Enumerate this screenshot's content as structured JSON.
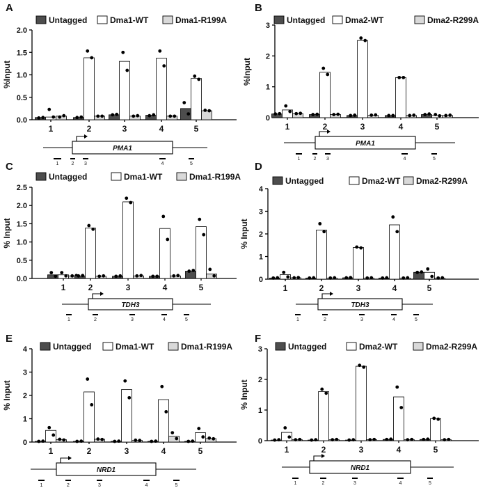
{
  "chart_data": [
    {
      "panel": "A",
      "type": "bar",
      "gene": "PMA1",
      "ylabel": "%Input",
      "ylim": [
        0,
        2.0
      ],
      "yticks": [
        "0.0",
        "0.5",
        "1.0",
        "1.5",
        "2.0"
      ],
      "categories": [
        "1",
        "2",
        "3",
        "4",
        "5"
      ],
      "series": [
        {
          "name": "Untagged",
          "color": "#4d4d4d",
          "values": [
            0.05,
            0.05,
            0.11,
            0.1,
            0.25
          ],
          "points": [
            [
              0.04,
              0.05
            ],
            [
              0.05,
              0.06
            ],
            [
              0.11,
              0.12
            ],
            [
              0.09,
              0.11
            ],
            [
              0.38,
              0.13
            ]
          ]
        },
        {
          "name": "Dma1-WT",
          "color": "#ffffff",
          "values": [
            0.06,
            1.38,
            1.3,
            1.37,
            0.92
          ],
          "points": [
            [
              0.23,
              0.06
            ],
            [
              1.53,
              1.38
            ],
            [
              1.5,
              1.1
            ],
            [
              1.53,
              1.2
            ],
            [
              0.97,
              0.9
            ]
          ]
        },
        {
          "name": "Dma1-R199A",
          "color": "#d9d9d9",
          "values": [
            0.08,
            0.08,
            0.08,
            0.08,
            0.2
          ],
          "points": [
            [
              0.06,
              0.09
            ],
            [
              0.08,
              0.08
            ],
            [
              0.08,
              0.09
            ],
            [
              0.08,
              0.08
            ],
            [
              0.21,
              0.2
            ]
          ]
        }
      ],
      "primers": [
        "1",
        "2",
        "3",
        "4",
        "5"
      ]
    },
    {
      "panel": "B",
      "type": "bar",
      "gene": "PMA1",
      "ylabel": "%Input",
      "ylim": [
        0,
        3
      ],
      "yticks": [
        "0",
        "1",
        "2",
        "3"
      ],
      "categories": [
        "1",
        "2",
        "3",
        "4",
        "5"
      ],
      "series": [
        {
          "name": "Untagged",
          "color": "#4d4d4d",
          "values": [
            0.12,
            0.1,
            0.07,
            0.07,
            0.1
          ],
          "points": [
            [
              0.12,
              0.13
            ],
            [
              0.1,
              0.11
            ],
            [
              0.07,
              0.08
            ],
            [
              0.07,
              0.07
            ],
            [
              0.1,
              0.12
            ]
          ]
        },
        {
          "name": "Dma2-WT",
          "color": "#ffffff",
          "values": [
            0.25,
            1.47,
            2.5,
            1.3,
            0.07
          ],
          "points": [
            [
              0.38,
              0.2
            ],
            [
              1.6,
              1.4
            ],
            [
              2.58,
              2.5
            ],
            [
              1.3,
              1.3
            ],
            [
              0.1,
              0.06
            ]
          ]
        },
        {
          "name": "Dma2-R299A",
          "color": "#d9d9d9",
          "values": [
            0.13,
            0.1,
            0.08,
            0.07,
            0.07
          ],
          "points": [
            [
              0.13,
              0.14
            ],
            [
              0.1,
              0.11
            ],
            [
              0.08,
              0.09
            ],
            [
              0.07,
              0.08
            ],
            [
              0.07,
              0.08
            ]
          ]
        }
      ],
      "primers": [
        "1",
        "2",
        "3",
        "4",
        "5"
      ]
    },
    {
      "panel": "C",
      "type": "bar",
      "gene": "TDH3",
      "ylabel": "% Input",
      "ylim": [
        0,
        2.5
      ],
      "yticks": [
        "0.0",
        "0.5",
        "1.0",
        "1.5",
        "2.0",
        "2.5"
      ],
      "categories": [
        "1",
        "2",
        "3",
        "4",
        "5"
      ],
      "series": [
        {
          "name": "Untagged",
          "color": "#4d4d4d",
          "values": [
            0.1,
            0.07,
            0.06,
            0.06,
            0.2
          ],
          "points": [
            [
              0.16,
              0.06
            ],
            [
              0.07,
              0.08
            ],
            [
              0.06,
              0.07
            ],
            [
              0.06,
              0.06
            ],
            [
              0.2,
              0.22
            ]
          ]
        },
        {
          "name": "Dma1-WT",
          "color": "#ffffff",
          "values": [
            0.1,
            1.38,
            2.1,
            1.37,
            1.42
          ],
          "points": [
            [
              0.16,
              0.07
            ],
            [
              1.45,
              1.35
            ],
            [
              2.2,
              2.08
            ],
            [
              1.7,
              1.07
            ],
            [
              1.62,
              1.2
            ]
          ]
        },
        {
          "name": "Dma1-R199A",
          "color": "#d9d9d9",
          "values": [
            0.07,
            0.06,
            0.07,
            0.07,
            0.12
          ],
          "points": [
            [
              0.07,
              0.08
            ],
            [
              0.06,
              0.07
            ],
            [
              0.07,
              0.08
            ],
            [
              0.07,
              0.08
            ],
            [
              0.25,
              0.07
            ]
          ]
        }
      ],
      "primers": [
        "1",
        "2",
        "3",
        "4",
        "5"
      ]
    },
    {
      "panel": "D",
      "type": "bar",
      "gene": "TDH3",
      "ylabel": "% Input",
      "ylim": [
        0,
        4
      ],
      "yticks": [
        "0",
        "1",
        "2",
        "3",
        "4"
      ],
      "categories": [
        "1",
        "2",
        "3",
        "4",
        "5"
      ],
      "series": [
        {
          "name": "Untagged",
          "color": "#4d4d4d",
          "values": [
            0.05,
            0.05,
            0.06,
            0.05,
            0.3
          ],
          "points": [
            [
              0.05,
              0.06
            ],
            [
              0.05,
              0.06
            ],
            [
              0.06,
              0.07
            ],
            [
              0.05,
              0.06
            ],
            [
              0.3,
              0.32
            ]
          ]
        },
        {
          "name": "Dma2-WT",
          "color": "#ffffff",
          "values": [
            0.2,
            2.17,
            1.4,
            2.4,
            0.3
          ],
          "points": [
            [
              0.3,
              0.1
            ],
            [
              2.45,
              2.1
            ],
            [
              1.42,
              1.38
            ],
            [
              2.75,
              2.1
            ],
            [
              0.45,
              0.12
            ]
          ]
        },
        {
          "name": "Dma2-R299A",
          "color": "#d9d9d9",
          "values": [
            0.06,
            0.05,
            0.05,
            0.05,
            0.05
          ],
          "points": [
            [
              0.06,
              0.07
            ],
            [
              0.05,
              0.06
            ],
            [
              0.05,
              0.06
            ],
            [
              0.05,
              0.06
            ],
            [
              0.05,
              0.06
            ]
          ]
        }
      ],
      "primers": [
        "1",
        "2",
        "3",
        "4",
        "5"
      ]
    },
    {
      "panel": "E",
      "type": "bar",
      "gene": "NRD1",
      "ylabel": "% Input",
      "ylim": [
        0,
        4
      ],
      "yticks": [
        "0",
        "1",
        "2",
        "3",
        "4"
      ],
      "categories": [
        "1",
        "2",
        "3",
        "4",
        "5"
      ],
      "series": [
        {
          "name": "Untagged",
          "color": "#4d4d4d",
          "values": [
            0.03,
            0.03,
            0.03,
            0.03,
            0.03
          ],
          "points": [
            [
              0.03,
              0.04
            ],
            [
              0.03,
              0.04
            ],
            [
              0.03,
              0.04
            ],
            [
              0.03,
              0.04
            ],
            [
              0.03,
              0.04
            ]
          ]
        },
        {
          "name": "Dma1-WT",
          "color": "#ffffff",
          "values": [
            0.5,
            2.15,
            2.25,
            1.82,
            0.4
          ],
          "points": [
            [
              0.62,
              0.3
            ],
            [
              2.7,
              1.6
            ],
            [
              2.62,
              1.9
            ],
            [
              2.38,
              1.3
            ],
            [
              0.58,
              0.22
            ]
          ]
        },
        {
          "name": "Dma1-R199A",
          "color": "#d9d9d9",
          "values": [
            0.1,
            0.12,
            0.07,
            0.25,
            0.15
          ],
          "points": [
            [
              0.12,
              0.09
            ],
            [
              0.13,
              0.11
            ],
            [
              0.08,
              0.07
            ],
            [
              0.4,
              0.15
            ],
            [
              0.17,
              0.14
            ]
          ]
        }
      ],
      "primers": [
        "1",
        "2",
        "3",
        "4",
        "5"
      ]
    },
    {
      "panel": "F",
      "type": "bar",
      "gene": "NRD1",
      "ylabel": "% Input",
      "ylim": [
        0,
        3
      ],
      "yticks": [
        "0",
        "1",
        "2",
        "3"
      ],
      "categories": [
        "1",
        "2",
        "3",
        "4",
        "5"
      ],
      "series": [
        {
          "name": "Untagged",
          "color": "#4d4d4d",
          "values": [
            0.02,
            0.02,
            0.02,
            0.04,
            0.04
          ],
          "points": [
            [
              0.02,
              0.03
            ],
            [
              0.02,
              0.03
            ],
            [
              0.02,
              0.03
            ],
            [
              0.04,
              0.05
            ],
            [
              0.04,
              0.05
            ]
          ]
        },
        {
          "name": "Dma2-WT",
          "color": "#ffffff",
          "values": [
            0.27,
            1.6,
            2.43,
            1.43,
            0.72
          ],
          "points": [
            [
              0.42,
              0.12
            ],
            [
              1.68,
              1.55
            ],
            [
              2.46,
              2.4
            ],
            [
              1.75,
              1.08
            ],
            [
              0.73,
              0.7
            ]
          ]
        },
        {
          "name": "Dma2-R299A",
          "color": "#d9d9d9",
          "values": [
            0.03,
            0.03,
            0.03,
            0.03,
            0.03
          ],
          "points": [
            [
              0.03,
              0.04
            ],
            [
              0.03,
              0.04
            ],
            [
              0.03,
              0.04
            ],
            [
              0.03,
              0.04
            ],
            [
              0.03,
              0.04
            ]
          ]
        }
      ],
      "primers": [
        "1",
        "2",
        "3",
        "4",
        "5"
      ]
    }
  ]
}
